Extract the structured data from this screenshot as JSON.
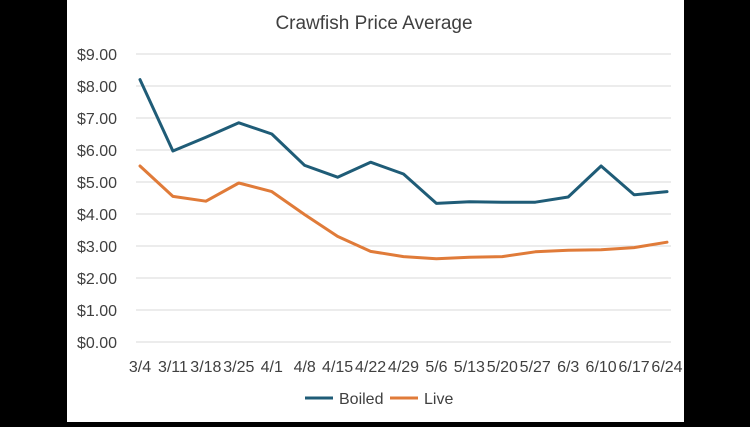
{
  "chart_data": {
    "type": "line",
    "title": "Crawfish Price Average",
    "xlabel": "",
    "ylabel": "",
    "ylim": [
      0,
      9
    ],
    "grid": true,
    "legend_position": "bottom",
    "y_ticks": [
      0,
      1,
      2,
      3,
      4,
      5,
      6,
      7,
      8,
      9
    ],
    "y_tick_labels": [
      "$0.00",
      "$1.00",
      "$2.00",
      "$3.00",
      "$4.00",
      "$5.00",
      "$6.00",
      "$7.00",
      "$8.00",
      "$9.00"
    ],
    "categories": [
      "3/4",
      "3/11",
      "3/18",
      "3/25",
      "4/1",
      "4/8",
      "4/15",
      "4/22",
      "4/29",
      "5/6",
      "5/13",
      "5/20",
      "5/27",
      "6/3",
      "6/10",
      "6/17",
      "6/24"
    ],
    "series": [
      {
        "name": "Boiled",
        "color": "#1f5c77",
        "values": [
          8.2,
          5.97,
          6.4,
          6.85,
          6.5,
          5.52,
          5.15,
          5.62,
          5.25,
          4.33,
          4.38,
          4.37,
          4.37,
          4.53,
          5.5,
          4.6,
          4.7
        ]
      },
      {
        "name": "Live",
        "color": "#e07b39",
        "values": [
          5.5,
          4.55,
          4.4,
          4.97,
          4.7,
          3.98,
          3.3,
          2.83,
          2.67,
          2.6,
          2.65,
          2.67,
          2.82,
          2.87,
          2.88,
          2.95,
          3.12
        ]
      }
    ]
  }
}
